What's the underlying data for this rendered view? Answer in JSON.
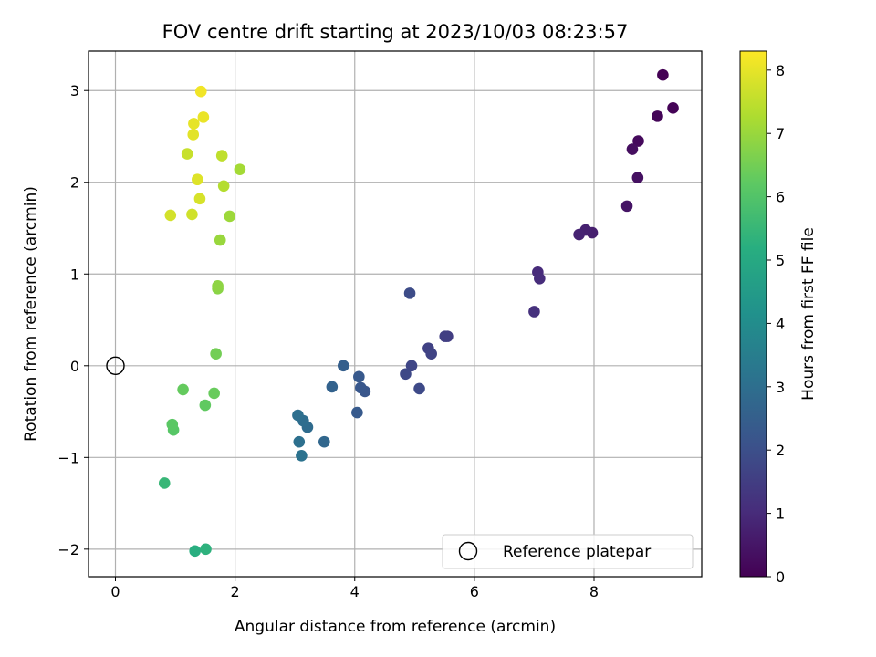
{
  "chart_data": {
    "type": "scatter",
    "title": "FOV centre drift starting at 2023/10/03 08:23:57",
    "xlabel": "Angular distance from reference (arcmin)",
    "ylabel": "Rotation from reference (arcmin)",
    "xlim": [
      -0.45,
      9.8
    ],
    "ylim": [
      -2.3,
      3.43
    ],
    "xticks": [
      0,
      2,
      4,
      6,
      8
    ],
    "yticks": [
      -2,
      -1,
      0,
      1,
      2,
      3
    ],
    "xtick_labels": [
      "0",
      "2",
      "4",
      "6",
      "8"
    ],
    "ytick_labels": [
      "−2",
      "−1",
      "0",
      "1",
      "2",
      "3"
    ],
    "grid": true,
    "colorbar": {
      "label": "Hours from first FF file",
      "colormap": "viridis",
      "range": [
        0,
        8.3
      ],
      "ticks": [
        0,
        1,
        2,
        3,
        4,
        5,
        6,
        7,
        8
      ],
      "tick_labels": [
        "0",
        "1",
        "2",
        "3",
        "4",
        "5",
        "6",
        "7",
        "8"
      ]
    },
    "legend": {
      "location": "lower-right",
      "entries": [
        {
          "label": "Reference platepar",
          "marker": "open-circle"
        }
      ]
    },
    "reference_point": {
      "x": 0,
      "y": 0
    },
    "points": [
      {
        "x": 9.15,
        "y": 3.17,
        "hours": 0.0
      },
      {
        "x": 9.32,
        "y": 2.81,
        "hours": 0.05
      },
      {
        "x": 9.06,
        "y": 2.72,
        "hours": 0.1
      },
      {
        "x": 8.74,
        "y": 2.45,
        "hours": 0.2
      },
      {
        "x": 8.64,
        "y": 2.36,
        "hours": 0.3
      },
      {
        "x": 8.73,
        "y": 2.05,
        "hours": 0.35
      },
      {
        "x": 8.55,
        "y": 1.74,
        "hours": 0.45
      },
      {
        "x": 7.97,
        "y": 1.45,
        "hours": 0.7
      },
      {
        "x": 7.86,
        "y": 1.48,
        "hours": 0.75
      },
      {
        "x": 7.75,
        "y": 1.43,
        "hours": 0.8
      },
      {
        "x": 7.06,
        "y": 1.02,
        "hours": 1.0
      },
      {
        "x": 7.09,
        "y": 0.95,
        "hours": 1.05
      },
      {
        "x": 7.0,
        "y": 0.59,
        "hours": 1.15
      },
      {
        "x": 5.55,
        "y": 0.32,
        "hours": 1.5
      },
      {
        "x": 5.51,
        "y": 0.32,
        "hours": 1.55
      },
      {
        "x": 5.23,
        "y": 0.19,
        "hours": 1.6
      },
      {
        "x": 5.28,
        "y": 0.13,
        "hours": 1.65
      },
      {
        "x": 4.95,
        "y": 0.0,
        "hours": 1.75
      },
      {
        "x": 4.85,
        "y": -0.09,
        "hours": 1.8
      },
      {
        "x": 5.08,
        "y": -0.25,
        "hours": 1.85
      },
      {
        "x": 4.92,
        "y": 0.79,
        "hours": 1.9
      },
      {
        "x": 4.17,
        "y": -0.28,
        "hours": 2.2
      },
      {
        "x": 4.1,
        "y": -0.24,
        "hours": 2.25
      },
      {
        "x": 4.07,
        "y": -0.12,
        "hours": 2.3
      },
      {
        "x": 4.04,
        "y": -0.51,
        "hours": 2.35
      },
      {
        "x": 3.81,
        "y": 0.0,
        "hours": 2.5
      },
      {
        "x": 3.62,
        "y": -0.23,
        "hours": 2.6
      },
      {
        "x": 3.49,
        "y": -0.83,
        "hours": 2.75
      },
      {
        "x": 3.21,
        "y": -0.67,
        "hours": 2.9
      },
      {
        "x": 3.14,
        "y": -0.6,
        "hours": 2.95
      },
      {
        "x": 3.05,
        "y": -0.54,
        "hours": 3.0
      },
      {
        "x": 3.07,
        "y": -0.83,
        "hours": 3.05
      },
      {
        "x": 3.11,
        "y": -0.98,
        "hours": 3.1
      },
      {
        "x": 1.33,
        "y": -2.02,
        "hours": 5.2
      },
      {
        "x": 1.51,
        "y": -2.0,
        "hours": 5.3
      },
      {
        "x": 0.82,
        "y": -1.28,
        "hours": 5.5
      },
      {
        "x": 0.97,
        "y": -0.7,
        "hours": 6.1
      },
      {
        "x": 0.95,
        "y": -0.64,
        "hours": 6.15
      },
      {
        "x": 1.5,
        "y": -0.43,
        "hours": 6.25
      },
      {
        "x": 1.13,
        "y": -0.26,
        "hours": 6.3
      },
      {
        "x": 1.65,
        "y": -0.3,
        "hours": 6.35
      },
      {
        "x": 1.68,
        "y": 0.13,
        "hours": 6.5
      },
      {
        "x": 1.71,
        "y": 0.84,
        "hours": 6.8
      },
      {
        "x": 1.71,
        "y": 0.87,
        "hours": 6.85
      },
      {
        "x": 1.75,
        "y": 1.37,
        "hours": 7.0
      },
      {
        "x": 1.91,
        "y": 1.63,
        "hours": 7.05
      },
      {
        "x": 2.08,
        "y": 2.14,
        "hours": 7.15
      },
      {
        "x": 1.81,
        "y": 1.96,
        "hours": 7.35
      },
      {
        "x": 1.78,
        "y": 2.29,
        "hours": 7.5
      },
      {
        "x": 1.2,
        "y": 2.31,
        "hours": 7.6
      },
      {
        "x": 1.28,
        "y": 1.65,
        "hours": 7.7
      },
      {
        "x": 0.92,
        "y": 1.64,
        "hours": 7.75
      },
      {
        "x": 1.41,
        "y": 1.82,
        "hours": 7.8
      },
      {
        "x": 1.37,
        "y": 2.03,
        "hours": 7.9
      },
      {
        "x": 1.3,
        "y": 2.52,
        "hours": 7.95
      },
      {
        "x": 1.31,
        "y": 2.64,
        "hours": 8.0
      },
      {
        "x": 1.47,
        "y": 2.71,
        "hours": 8.05
      },
      {
        "x": 1.43,
        "y": 2.99,
        "hours": 8.15
      }
    ]
  }
}
